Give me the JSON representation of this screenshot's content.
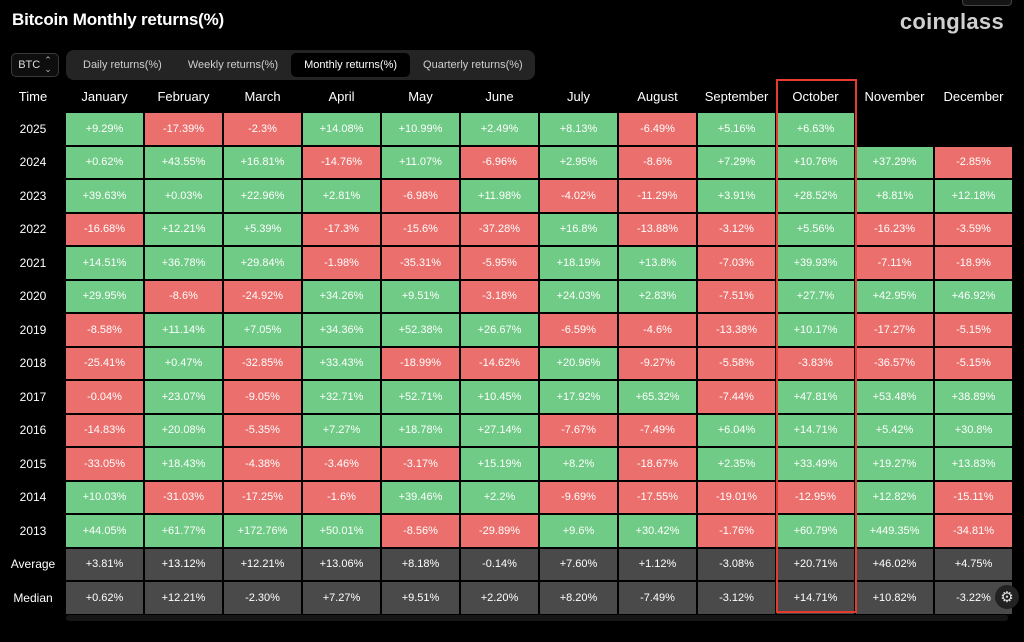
{
  "header": {
    "title": "Bitcoin Monthly returns(%)",
    "logo": "coinglass"
  },
  "coin_select": {
    "value": "BTC"
  },
  "tabs": [
    {
      "label": "Daily returns(%)",
      "active": false
    },
    {
      "label": "Weekly returns(%)",
      "active": false
    },
    {
      "label": "Monthly returns(%)",
      "active": true
    },
    {
      "label": "Quarterly returns(%)",
      "active": false
    }
  ],
  "colors": {
    "positive": "#6fcb86",
    "negative": "#eb6f6c",
    "summary": "#4a4a4a",
    "highlight": "#e53a2f"
  },
  "icons": {
    "settings": "gear-icon",
    "select": "chevron-updown-icon"
  },
  "chart_data": {
    "type": "table",
    "title": "Bitcoin Monthly returns(%)",
    "corner_label": "Time",
    "columns": [
      "January",
      "February",
      "March",
      "April",
      "May",
      "June",
      "July",
      "August",
      "September",
      "October",
      "November",
      "December"
    ],
    "highlighted_column": "October",
    "rows": [
      {
        "label": "2025",
        "values": [
          "+9.29%",
          "-17.39%",
          "-2.3%",
          "+14.08%",
          "+10.99%",
          "+2.49%",
          "+8.13%",
          "-6.49%",
          "+5.16%",
          "+6.63%",
          "",
          ""
        ]
      },
      {
        "label": "2024",
        "values": [
          "+0.62%",
          "+43.55%",
          "+16.81%",
          "-14.76%",
          "+11.07%",
          "-6.96%",
          "+2.95%",
          "-8.6%",
          "+7.29%",
          "+10.76%",
          "+37.29%",
          "-2.85%"
        ]
      },
      {
        "label": "2023",
        "values": [
          "+39.63%",
          "+0.03%",
          "+22.96%",
          "+2.81%",
          "-6.98%",
          "+11.98%",
          "-4.02%",
          "-11.29%",
          "+3.91%",
          "+28.52%",
          "+8.81%",
          "+12.18%"
        ]
      },
      {
        "label": "2022",
        "values": [
          "-16.68%",
          "+12.21%",
          "+5.39%",
          "-17.3%",
          "-15.6%",
          "-37.28%",
          "+16.8%",
          "-13.88%",
          "-3.12%",
          "+5.56%",
          "-16.23%",
          "-3.59%"
        ]
      },
      {
        "label": "2021",
        "values": [
          "+14.51%",
          "+36.78%",
          "+29.84%",
          "-1.98%",
          "-35.31%",
          "-5.95%",
          "+18.19%",
          "+13.8%",
          "-7.03%",
          "+39.93%",
          "-7.11%",
          "-18.9%"
        ]
      },
      {
        "label": "2020",
        "values": [
          "+29.95%",
          "-8.6%",
          "-24.92%",
          "+34.26%",
          "+9.51%",
          "-3.18%",
          "+24.03%",
          "+2.83%",
          "-7.51%",
          "+27.7%",
          "+42.95%",
          "+46.92%"
        ]
      },
      {
        "label": "2019",
        "values": [
          "-8.58%",
          "+11.14%",
          "+7.05%",
          "+34.36%",
          "+52.38%",
          "+26.67%",
          "-6.59%",
          "-4.6%",
          "-13.38%",
          "+10.17%",
          "-17.27%",
          "-5.15%"
        ]
      },
      {
        "label": "2018",
        "values": [
          "-25.41%",
          "+0.47%",
          "-32.85%",
          "+33.43%",
          "-18.99%",
          "-14.62%",
          "+20.96%",
          "-9.27%",
          "-5.58%",
          "-3.83%",
          "-36.57%",
          "-5.15%"
        ]
      },
      {
        "label": "2017",
        "values": [
          "-0.04%",
          "+23.07%",
          "-9.05%",
          "+32.71%",
          "+52.71%",
          "+10.45%",
          "+17.92%",
          "+65.32%",
          "-7.44%",
          "+47.81%",
          "+53.48%",
          "+38.89%"
        ]
      },
      {
        "label": "2016",
        "values": [
          "-14.83%",
          "+20.08%",
          "-5.35%",
          "+7.27%",
          "+18.78%",
          "+27.14%",
          "-7.67%",
          "-7.49%",
          "+6.04%",
          "+14.71%",
          "+5.42%",
          "+30.8%"
        ]
      },
      {
        "label": "2015",
        "values": [
          "-33.05%",
          "+18.43%",
          "-4.38%",
          "-3.46%",
          "-3.17%",
          "+15.19%",
          "+8.2%",
          "-18.67%",
          "+2.35%",
          "+33.49%",
          "+19.27%",
          "+13.83%"
        ]
      },
      {
        "label": "2014",
        "values": [
          "+10.03%",
          "-31.03%",
          "-17.25%",
          "-1.6%",
          "+39.46%",
          "+2.2%",
          "-9.69%",
          "-17.55%",
          "-19.01%",
          "-12.95%",
          "+12.82%",
          "-15.11%"
        ]
      },
      {
        "label": "2013",
        "values": [
          "+44.05%",
          "+61.77%",
          "+172.76%",
          "+50.01%",
          "-8.56%",
          "-29.89%",
          "+9.6%",
          "+30.42%",
          "-1.76%",
          "+60.79%",
          "+449.35%",
          "-34.81%"
        ]
      }
    ],
    "summary_rows": [
      {
        "label": "Average",
        "values": [
          "+3.81%",
          "+13.12%",
          "+12.21%",
          "+13.06%",
          "+8.18%",
          "-0.14%",
          "+7.60%",
          "+1.12%",
          "-3.08%",
          "+20.71%",
          "+46.02%",
          "+4.75%"
        ]
      },
      {
        "label": "Median",
        "values": [
          "+0.62%",
          "+12.21%",
          "-2.30%",
          "+7.27%",
          "+9.51%",
          "+2.20%",
          "+8.20%",
          "-7.49%",
          "-3.12%",
          "+14.71%",
          "+10.82%",
          "-3.22%"
        ]
      }
    ]
  }
}
